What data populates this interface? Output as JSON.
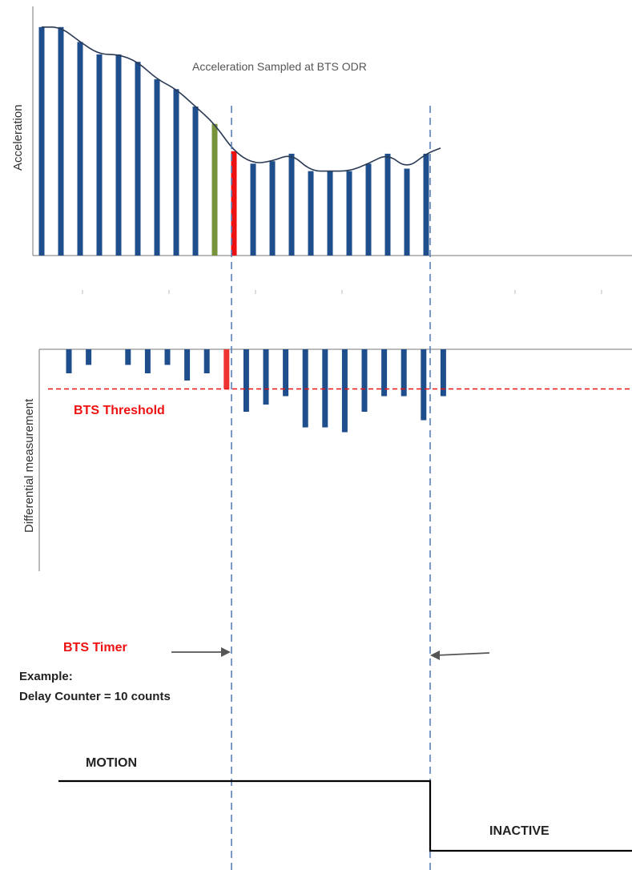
{
  "top_chart": {
    "title": "Acceleration Sampled at BTS ODR",
    "ylabel": "Acceleration",
    "values": [
      0.92,
      0.92,
      0.86,
      0.81,
      0.81,
      0.78,
      0.71,
      0.67,
      0.6,
      0.53,
      0.42,
      0.37,
      0.38,
      0.41,
      0.34,
      0.34,
      0.34,
      0.37,
      0.41,
      0.35,
      0.41
    ],
    "highlight_green_index": 9,
    "highlight_red_index": 10,
    "colors": {
      "bar": "#1f4e8c",
      "green": "#77933c",
      "red": "#ee1111",
      "curve": "#2b3a55"
    }
  },
  "bottom_chart": {
    "ylabel": "Differential measurement",
    "threshold_label": "BTS Threshold",
    "values": [
      -0.2,
      -0.13,
      0,
      -0.13,
      -0.2,
      -0.13,
      -0.26,
      -0.2,
      -0.33,
      -0.52,
      -0.46,
      -0.39,
      -0.65,
      -0.65,
      -0.69,
      -0.52,
      -0.39,
      -0.39,
      -0.59,
      -0.39
    ],
    "threshold": -0.33,
    "highlight_red_index": 8,
    "colors": {
      "bar": "#1f4e8c",
      "red": "#ee3333",
      "threshold": "#ee1111"
    }
  },
  "timer": {
    "label": "BTS Timer",
    "example_label": "Example:",
    "delay_text": "Delay Counter = 10 counts"
  },
  "state": {
    "motion_label": "MOTION",
    "inactive_label": "INACTIVE"
  },
  "colors": {
    "marker_line": "#5b7fb5",
    "text": "#222222",
    "accent_red": "#ee1111"
  }
}
